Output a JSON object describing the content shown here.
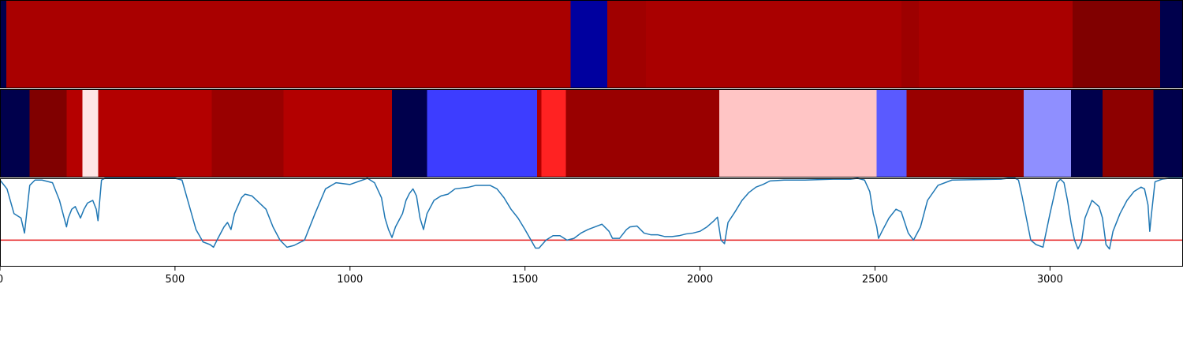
{
  "chart_data": [
    {
      "type": "heatmap",
      "segments": [
        {
          "x0": 0,
          "x1": 18,
          "color": "#00004c"
        },
        {
          "x0": 18,
          "x1": 1630,
          "color": "#a90000"
        },
        {
          "x0": 1630,
          "x1": 1735,
          "color": "#00009f"
        },
        {
          "x0": 1735,
          "x1": 1845,
          "color": "#a00000"
        },
        {
          "x0": 1845,
          "x1": 2575,
          "color": "#a90000"
        },
        {
          "x0": 2575,
          "x1": 2625,
          "color": "#9d0000"
        },
        {
          "x0": 2625,
          "x1": 3065,
          "color": "#a90000"
        },
        {
          "x0": 3065,
          "x1": 3315,
          "color": "#800000"
        },
        {
          "x0": 3315,
          "x1": 3380,
          "color": "#00004c"
        }
      ]
    },
    {
      "type": "heatmap",
      "segments": [
        {
          "x0": 0,
          "x1": 85,
          "color": "#00004c"
        },
        {
          "x0": 85,
          "x1": 190,
          "color": "#800000"
        },
        {
          "x0": 190,
          "x1": 235,
          "color": "#b50000"
        },
        {
          "x0": 235,
          "x1": 280,
          "color": "#ffe5e5"
        },
        {
          "x0": 280,
          "x1": 605,
          "color": "#b30000"
        },
        {
          "x0": 605,
          "x1": 810,
          "color": "#990000"
        },
        {
          "x0": 810,
          "x1": 1120,
          "color": "#b30000"
        },
        {
          "x0": 1120,
          "x1": 1220,
          "color": "#00004c"
        },
        {
          "x0": 1220,
          "x1": 1535,
          "color": "#3d3dff"
        },
        {
          "x0": 1535,
          "x1": 1547,
          "color": "#b30000"
        },
        {
          "x0": 1547,
          "x1": 1617,
          "color": "#ff2222"
        },
        {
          "x0": 1617,
          "x1": 2055,
          "color": "#990000"
        },
        {
          "x0": 2055,
          "x1": 2505,
          "color": "#ffc5c5"
        },
        {
          "x0": 2505,
          "x1": 2590,
          "color": "#5a5aff"
        },
        {
          "x0": 2590,
          "x1": 2925,
          "color": "#990000"
        },
        {
          "x0": 2925,
          "x1": 3060,
          "color": "#8f8fff"
        },
        {
          "x0": 3060,
          "x1": 3150,
          "color": "#00004c"
        },
        {
          "x0": 3150,
          "x1": 3295,
          "color": "#8d0000"
        },
        {
          "x0": 3295,
          "x1": 3380,
          "color": "#00004c"
        }
      ]
    },
    {
      "type": "line",
      "xlim": [
        0,
        3380
      ],
      "ylim": [
        0,
        1
      ],
      "x_ticks": [
        0,
        500,
        1000,
        1500,
        2000,
        2500,
        3000
      ],
      "x_tick_labels": [
        "0",
        "500",
        "1000",
        "1500",
        "2000",
        "2500",
        "3000"
      ],
      "threshold": {
        "value": 0.3,
        "color": "#e41a1c"
      },
      "series": [
        {
          "color": "#1f77b4",
          "x": [
            0,
            20,
            40,
            60,
            70,
            85,
            100,
            120,
            150,
            170,
            180,
            190,
            195,
            205,
            215,
            230,
            240,
            250,
            265,
            275,
            280,
            290,
            300,
            350,
            500,
            520,
            540,
            560,
            580,
            600,
            610,
            620,
            640,
            650,
            660,
            670,
            690,
            700,
            720,
            760,
            780,
            800,
            820,
            840,
            870,
            900,
            930,
            960,
            1000,
            1050,
            1070,
            1090,
            1100,
            1110,
            1120,
            1130,
            1150,
            1160,
            1170,
            1180,
            1190,
            1200,
            1210,
            1220,
            1240,
            1260,
            1280,
            1300,
            1340,
            1360,
            1400,
            1420,
            1440,
            1460,
            1480,
            1500,
            1520,
            1530,
            1540,
            1560,
            1580,
            1600,
            1620,
            1640,
            1660,
            1680,
            1700,
            1720,
            1740,
            1750,
            1770,
            1790,
            1800,
            1820,
            1840,
            1860,
            1880,
            1900,
            1920,
            1940,
            1960,
            1980,
            2000,
            2020,
            2040,
            2050,
            2060,
            2070,
            2080,
            2100,
            2120,
            2140,
            2160,
            2180,
            2200,
            2240,
            2300,
            2380,
            2430,
            2450,
            2470,
            2485,
            2495,
            2505,
            2510,
            2520,
            2540,
            2560,
            2575,
            2585,
            2595,
            2610,
            2630,
            2650,
            2680,
            2720,
            2860,
            2880,
            2900,
            2910,
            2920,
            2935,
            2945,
            2960,
            2980,
            3000,
            3020,
            3030,
            3040,
            3050,
            3060,
            3070,
            3080,
            3090,
            3100,
            3120,
            3140,
            3150,
            3160,
            3170,
            3180,
            3200,
            3220,
            3240,
            3260,
            3270,
            3280,
            3285,
            3290,
            3300,
            3320,
            3340,
            3380
          ],
          "y": [
            0.98,
            0.88,
            0.6,
            0.55,
            0.38,
            0.92,
            0.98,
            0.98,
            0.95,
            0.75,
            0.6,
            0.45,
            0.55,
            0.65,
            0.68,
            0.55,
            0.65,
            0.72,
            0.75,
            0.65,
            0.52,
            0.98,
            1.0,
            1.0,
            1.0,
            0.98,
            0.7,
            0.42,
            0.28,
            0.25,
            0.22,
            0.3,
            0.45,
            0.5,
            0.42,
            0.6,
            0.78,
            0.82,
            0.8,
            0.65,
            0.45,
            0.3,
            0.22,
            0.24,
            0.3,
            0.6,
            0.88,
            0.95,
            0.93,
            1.0,
            0.95,
            0.78,
            0.55,
            0.42,
            0.33,
            0.45,
            0.6,
            0.75,
            0.83,
            0.88,
            0.8,
            0.55,
            0.42,
            0.6,
            0.75,
            0.8,
            0.82,
            0.88,
            0.9,
            0.92,
            0.92,
            0.88,
            0.78,
            0.65,
            0.55,
            0.42,
            0.28,
            0.21,
            0.21,
            0.3,
            0.35,
            0.35,
            0.3,
            0.32,
            0.38,
            0.42,
            0.45,
            0.48,
            0.4,
            0.32,
            0.32,
            0.42,
            0.45,
            0.46,
            0.38,
            0.36,
            0.36,
            0.34,
            0.34,
            0.35,
            0.37,
            0.38,
            0.4,
            0.45,
            0.52,
            0.56,
            0.3,
            0.26,
            0.5,
            0.62,
            0.75,
            0.84,
            0.9,
            0.93,
            0.97,
            0.98,
            0.98,
            0.99,
            0.99,
            1.0,
            0.98,
            0.85,
            0.6,
            0.45,
            0.32,
            0.4,
            0.55,
            0.65,
            0.62,
            0.5,
            0.38,
            0.3,
            0.45,
            0.75,
            0.92,
            0.98,
            0.99,
            1.0,
            1.0,
            0.98,
            0.8,
            0.5,
            0.3,
            0.25,
            0.22,
            0.6,
            0.95,
            0.99,
            0.95,
            0.75,
            0.5,
            0.3,
            0.2,
            0.28,
            0.55,
            0.75,
            0.68,
            0.55,
            0.25,
            0.2,
            0.4,
            0.6,
            0.75,
            0.85,
            0.9,
            0.88,
            0.7,
            0.4,
            0.6,
            0.96,
            0.99,
            1.0,
            1.0
          ]
        }
      ]
    }
  ]
}
